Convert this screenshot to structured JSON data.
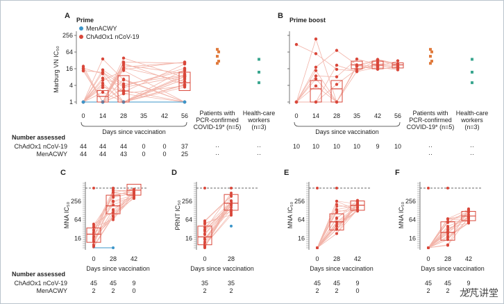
{
  "colors": {
    "chadox": "#d9473a",
    "menacwy": "#3b95c9",
    "pcr": "#e07a3c",
    "hcw": "#3aa68f",
    "line_light": "#f2b3a8",
    "box": "#d9473a"
  },
  "legend": {
    "menacwy": "MenACWY",
    "chadox": "ChAdOx1 nCoV-19"
  },
  "watermark": "龙芃讲堂",
  "chart_data": [
    {
      "id": "A",
      "letter": "A",
      "title": "Prime",
      "type": "scatter",
      "ylabel": "Marburg VN IC₅₀",
      "yscale": "log2",
      "ylim": [
        1,
        256
      ],
      "yticks": [
        "1",
        "4",
        "16",
        "64",
        "256"
      ],
      "xticks": [
        "0",
        "14",
        "28",
        "35",
        "42",
        "56"
      ],
      "xlabel": "Days since vaccination",
      "extra_categories": [
        "Patients with PCR-confirmed COVID-19* (n=5)",
        "Health-care workers (n=3)"
      ],
      "boxes": [
        {
          "x": "14",
          "q1": 1,
          "median": 1.6,
          "q3": 2.6
        },
        {
          "x": "28",
          "q1": 1,
          "median": 2.5,
          "q3": 9
        },
        {
          "x": "56",
          "q1": 2.6,
          "median": 5,
          "q3": 12
        }
      ],
      "pcr_values": [
        45,
        65,
        80,
        30,
        25
      ],
      "hcw_values": [
        35,
        12,
        5
      ],
      "number_assessed_label": "Number assessed",
      "assessed": [
        {
          "label": "ChAdOx1 nCoV-19",
          "values": [
            "44",
            "44",
            "44",
            "0",
            "0",
            "37",
            "··",
            "··"
          ]
        },
        {
          "label": "MenACWY",
          "values": [
            "44",
            "44",
            "43",
            "0",
            "0",
            "25",
            "··",
            "··"
          ]
        }
      ]
    },
    {
      "id": "B",
      "letter": "B",
      "title": "Prime boost",
      "type": "scatter",
      "ylabel": "",
      "yscale": "log2",
      "ylim": [
        1,
        256
      ],
      "xticks": [
        "0",
        "14",
        "28",
        "35",
        "42",
        "56"
      ],
      "xlabel": "Days since vaccination",
      "extra_categories": [
        "Patients with PCR-confirmed COVID-19* (n=5)",
        "Health-care workers (n=3)"
      ],
      "boxes": [
        {
          "x": "14",
          "q1": 1,
          "median": 3,
          "q3": 6
        },
        {
          "x": "28",
          "q1": 1,
          "median": 3,
          "q3": 6
        },
        {
          "x": "35",
          "q1": 16,
          "median": 22,
          "q3": 30
        },
        {
          "x": "42",
          "q1": 16,
          "median": 22,
          "q3": 30
        },
        {
          "x": "56",
          "q1": 17,
          "median": 22,
          "q3": 26
        }
      ],
      "pcr_values": [
        45,
        65,
        80,
        30,
        25
      ],
      "hcw_values": [
        35,
        12,
        5
      ],
      "assessed": [
        {
          "label": "",
          "values": [
            "10",
            "10",
            "10",
            "10",
            "9",
            "10",
            "··",
            "··"
          ]
        },
        {
          "label": "",
          "values": [
            "",
            "",
            "",
            "",
            "",
            "",
            "··",
            "··"
          ]
        }
      ]
    },
    {
      "id": "C",
      "letter": "C",
      "type": "scatter",
      "ylabel": "MNA IC₅₀",
      "yticks": [
        "16",
        "64",
        "256"
      ],
      "xticks": [
        "0",
        "28",
        "42"
      ],
      "xlabel": "Days since vaccination",
      "boxes": [
        {
          "x": "0",
          "q1": 12,
          "median": 22,
          "q3": 35
        },
        {
          "x": "28",
          "q1": 100,
          "median": 180,
          "q3": 400
        },
        {
          "x": "42",
          "q1": 400,
          "median": 580,
          "q3": 900
        }
      ],
      "assessed": [
        {
          "label": "ChAdOx1 nCoV-19",
          "values": [
            "45",
            "45",
            "9"
          ]
        },
        {
          "label": "MenACWY",
          "values": [
            "2",
            "2",
            "0"
          ]
        }
      ]
    },
    {
      "id": "D",
      "letter": "D",
      "type": "scatter",
      "ylabel": "PRNT IC₅₀",
      "yticks": [
        "16",
        "64",
        "256"
      ],
      "xticks": [
        "0",
        "28"
      ],
      "xlabel": "Days since vaccination",
      "boxes": [
        {
          "x": "0",
          "q1": 10,
          "median": 18,
          "q3": 40
        },
        {
          "x": "28",
          "q1": 130,
          "median": 220,
          "q3": 420
        }
      ],
      "assessed": [
        {
          "label": "",
          "values": [
            "35",
            "35"
          ]
        },
        {
          "label": "",
          "values": [
            "2",
            "2"
          ]
        }
      ]
    },
    {
      "id": "E",
      "letter": "E",
      "type": "scatter",
      "ylabel": "MNA IC₅₀",
      "yticks": [
        "16",
        "64",
        "256"
      ],
      "xticks": [
        "0",
        "28",
        "42"
      ],
      "xlabel": "Days since vaccination",
      "boxes": [
        {
          "x": "28",
          "q1": 30,
          "median": 55,
          "q3": 100
        },
        {
          "x": "42",
          "q1": 130,
          "median": 190,
          "q3": 260
        }
      ],
      "assessed": [
        {
          "label": "",
          "values": [
            "45",
            "45",
            "9"
          ]
        },
        {
          "label": "",
          "values": [
            "2",
            "2",
            "0"
          ]
        }
      ]
    },
    {
      "id": "F",
      "letter": "F",
      "type": "scatter",
      "ylabel": "MNA IC₅₀",
      "yticks": [
        "16",
        "64",
        "256"
      ],
      "xticks": [
        "0",
        "28",
        "42"
      ],
      "xlabel": "Days since vaccination",
      "boxes": [
        {
          "x": "28",
          "q1": 14,
          "median": 25,
          "q3": 55
        },
        {
          "x": "42",
          "q1": 60,
          "median": 85,
          "q3": 120
        }
      ],
      "assessed": [
        {
          "label": "",
          "values": [
            "45",
            "45",
            "9"
          ]
        },
        {
          "label": "",
          "values": [
            "2",
            "2",
            "0"
          ]
        }
      ]
    }
  ]
}
